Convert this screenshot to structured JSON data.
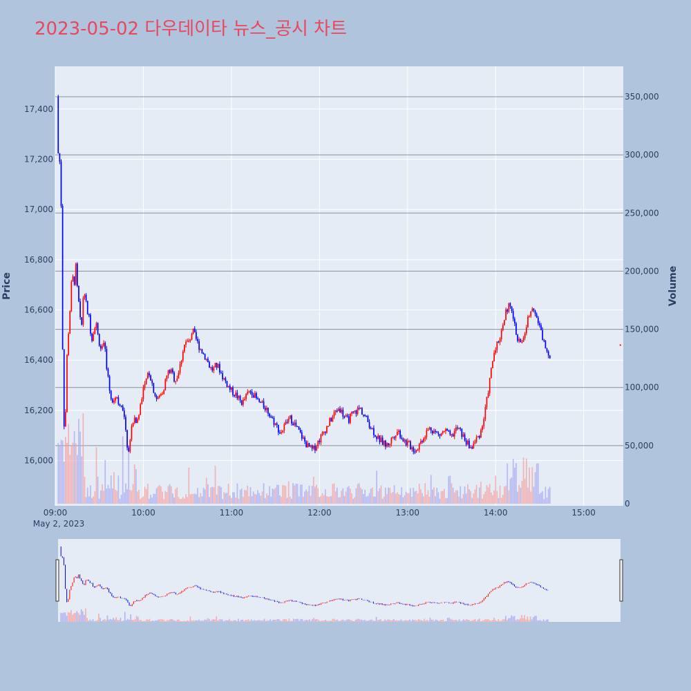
{
  "chart_data": {
    "type": "candlestick",
    "title": "2023-05-02 다우데이타 뉴스_공시 차트",
    "ylabel": "Price",
    "y2label": "Volume",
    "date_label": "May 2, 2023",
    "price_range": [
      15820,
      17570
    ],
    "volume_range": [
      0,
      350000
    ],
    "x_range_minutes": [
      540,
      927
    ],
    "price_ticks": [
      "16,000",
      "16,200",
      "16,400",
      "16,600",
      "16,800",
      "17,000",
      "17,200",
      "17,400"
    ],
    "price_tick_values": [
      16000,
      16200,
      16400,
      16600,
      16800,
      17000,
      17200,
      17400
    ],
    "volume_ticks": [
      "0",
      "50,000",
      "100,000",
      "150,000",
      "200,000",
      "250,000",
      "300,000",
      "350,000"
    ],
    "volume_tick_values": [
      0,
      50000,
      100000,
      150000,
      200000,
      250000,
      300000,
      350000
    ],
    "time_ticks": [
      "09:00",
      "10:00",
      "11:00",
      "12:00",
      "13:00",
      "14:00",
      "15:00"
    ],
    "time_tick_minutes": [
      540,
      600,
      660,
      720,
      780,
      840,
      900
    ],
    "up_color": "#ff0000",
    "down_color": "#0000ff",
    "title_color": "#e8475f",
    "price_path": [
      [
        542,
        17450
      ],
      [
        543,
        17000
      ],
      [
        544,
        17380
      ],
      [
        545,
        16700
      ],
      [
        546,
        16250
      ],
      [
        547,
        16100
      ],
      [
        548,
        16300
      ],
      [
        549,
        16500
      ],
      [
        551,
        16650
      ],
      [
        553,
        16720
      ],
      [
        554,
        16780
      ],
      [
        555,
        16680
      ],
      [
        557,
        16580
      ],
      [
        558,
        16450
      ],
      [
        559,
        16620
      ],
      [
        560,
        16700
      ],
      [
        562,
        16600
      ],
      [
        564,
        16560
      ],
      [
        565,
        16480
      ],
      [
        567,
        16520
      ],
      [
        568,
        16560
      ],
      [
        570,
        16480
      ],
      [
        572,
        16440
      ],
      [
        574,
        16460
      ],
      [
        576,
        16350
      ],
      [
        578,
        16260
      ],
      [
        580,
        16240
      ],
      [
        582,
        16260
      ],
      [
        584,
        16230
      ],
      [
        586,
        16200
      ],
      [
        588,
        16170
      ],
      [
        590,
        16020
      ],
      [
        592,
        16110
      ],
      [
        594,
        16180
      ],
      [
        596,
        16150
      ],
      [
        598,
        16200
      ],
      [
        600,
        16280
      ],
      [
        602,
        16300
      ],
      [
        604,
        16360
      ],
      [
        606,
        16320
      ],
      [
        608,
        16270
      ],
      [
        610,
        16240
      ],
      [
        612,
        16260
      ],
      [
        614,
        16280
      ],
      [
        616,
        16330
      ],
      [
        618,
        16360
      ],
      [
        620,
        16350
      ],
      [
        622,
        16320
      ],
      [
        624,
        16340
      ],
      [
        626,
        16390
      ],
      [
        628,
        16460
      ],
      [
        630,
        16470
      ],
      [
        632,
        16480
      ],
      [
        634,
        16520
      ],
      [
        636,
        16490
      ],
      [
        638,
        16460
      ],
      [
        640,
        16440
      ],
      [
        642,
        16420
      ],
      [
        644,
        16400
      ],
      [
        646,
        16370
      ],
      [
        648,
        16360
      ],
      [
        650,
        16380
      ],
      [
        652,
        16370
      ],
      [
        654,
        16340
      ],
      [
        656,
        16320
      ],
      [
        658,
        16300
      ],
      [
        660,
        16280
      ],
      [
        662,
        16270
      ],
      [
        664,
        16260
      ],
      [
        666,
        16240
      ],
      [
        668,
        16230
      ],
      [
        670,
        16250
      ],
      [
        672,
        16270
      ],
      [
        674,
        16280
      ],
      [
        676,
        16260
      ],
      [
        678,
        16240
      ],
      [
        680,
        16230
      ],
      [
        682,
        16220
      ],
      [
        684,
        16210
      ],
      [
        686,
        16190
      ],
      [
        688,
        16170
      ],
      [
        690,
        16150
      ],
      [
        692,
        16130
      ],
      [
        694,
        16110
      ],
      [
        696,
        16130
      ],
      [
        698,
        16150
      ],
      [
        700,
        16170
      ],
      [
        702,
        16160
      ],
      [
        704,
        16140
      ],
      [
        706,
        16120
      ],
      [
        708,
        16100
      ],
      [
        710,
        16080
      ],
      [
        712,
        16060
      ],
      [
        714,
        16050
      ],
      [
        716,
        16040
      ],
      [
        718,
        16060
      ],
      [
        720,
        16080
      ],
      [
        722,
        16100
      ],
      [
        724,
        16120
      ],
      [
        726,
        16140
      ],
      [
        728,
        16160
      ],
      [
        730,
        16180
      ],
      [
        732,
        16200
      ],
      [
        734,
        16210
      ],
      [
        736,
        16190
      ],
      [
        738,
        16170
      ],
      [
        740,
        16160
      ],
      [
        742,
        16180
      ],
      [
        744,
        16190
      ],
      [
        746,
        16200
      ],
      [
        748,
        16210
      ],
      [
        750,
        16190
      ],
      [
        752,
        16170
      ],
      [
        754,
        16150
      ],
      [
        756,
        16130
      ],
      [
        758,
        16110
      ],
      [
        760,
        16090
      ],
      [
        762,
        16080
      ],
      [
        764,
        16070
      ],
      [
        766,
        16060
      ],
      [
        768,
        16070
      ],
      [
        770,
        16090
      ],
      [
        772,
        16110
      ],
      [
        774,
        16120
      ],
      [
        776,
        16100
      ],
      [
        778,
        16080
      ],
      [
        780,
        16070
      ],
      [
        782,
        16060
      ],
      [
        784,
        16050
      ],
      [
        786,
        16040
      ],
      [
        788,
        16060
      ],
      [
        790,
        16080
      ],
      [
        792,
        16100
      ],
      [
        794,
        16120
      ],
      [
        796,
        16130
      ],
      [
        798,
        16120
      ],
      [
        800,
        16110
      ],
      [
        802,
        16100
      ],
      [
        804,
        16110
      ],
      [
        806,
        16120
      ],
      [
        808,
        16110
      ],
      [
        810,
        16090
      ],
      [
        812,
        16110
      ],
      [
        814,
        16130
      ],
      [
        816,
        16120
      ],
      [
        818,
        16100
      ],
      [
        820,
        16080
      ],
      [
        822,
        16060
      ],
      [
        824,
        16050
      ],
      [
        826,
        16070
      ],
      [
        828,
        16090
      ],
      [
        830,
        16110
      ],
      [
        832,
        16150
      ],
      [
        834,
        16220
      ],
      [
        836,
        16300
      ],
      [
        838,
        16380
      ],
      [
        840,
        16450
      ],
      [
        842,
        16470
      ],
      [
        844,
        16500
      ],
      [
        846,
        16560
      ],
      [
        848,
        16600
      ],
      [
        850,
        16620
      ],
      [
        852,
        16580
      ],
      [
        854,
        16520
      ],
      [
        856,
        16480
      ],
      [
        858,
        16460
      ],
      [
        860,
        16500
      ],
      [
        862,
        16550
      ],
      [
        864,
        16600
      ],
      [
        866,
        16620
      ],
      [
        868,
        16580
      ],
      [
        870,
        16540
      ],
      [
        872,
        16500
      ],
      [
        874,
        16460
      ],
      [
        876,
        16430
      ],
      [
        878,
        16420
      ]
    ]
  }
}
